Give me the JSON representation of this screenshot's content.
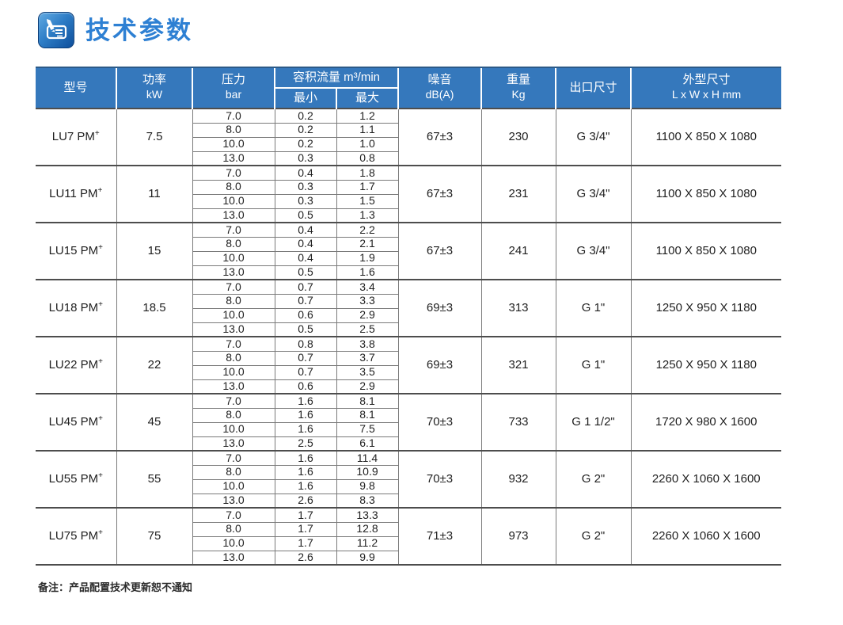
{
  "page": {
    "title": "技术参数",
    "note": "备注：产品配置技术更新恕不通知"
  },
  "colors": {
    "header_bg": "#3578bc",
    "header_top_edge": "#2c5a88",
    "title_text": "#2e80d3",
    "border_inner": "#7a7a7a",
    "border_block": "#4d4d4d"
  },
  "table": {
    "header": {
      "model": "型号",
      "power_l1": "功率",
      "power_l2": "kW",
      "pressure_l1": "压力",
      "pressure_l2": "bar",
      "flow": "容积流量 m³/min",
      "flow_min": "最小",
      "flow_max": "最大",
      "noise_l1": "噪音",
      "noise_l2": "dB(A)",
      "weight_l1": "重量",
      "weight_l2": "Kg",
      "outlet": "出口尺寸",
      "dims_l1": "外型尺寸",
      "dims_l2": "L x W x H mm"
    },
    "models": [
      {
        "name": "LU7 PM",
        "sup": "+",
        "power": "7.5",
        "rows": [
          [
            "7.0",
            "0.2",
            "1.2"
          ],
          [
            "8.0",
            "0.2",
            "1.1"
          ],
          [
            "10.0",
            "0.2",
            "1.0"
          ],
          [
            "13.0",
            "0.3",
            "0.8"
          ]
        ],
        "noise": "67±3",
        "weight": "230",
        "outlet": "G 3/4\"",
        "dims": "1100 X 850 X 1080"
      },
      {
        "name": "LU11 PM",
        "sup": "+",
        "power": "11",
        "rows": [
          [
            "7.0",
            "0.4",
            "1.8"
          ],
          [
            "8.0",
            "0.3",
            "1.7"
          ],
          [
            "10.0",
            "0.3",
            "1.5"
          ],
          [
            "13.0",
            "0.5",
            "1.3"
          ]
        ],
        "noise": "67±3",
        "weight": "231",
        "outlet": "G 3/4\"",
        "dims": "1100 X 850 X 1080"
      },
      {
        "name": "LU15 PM",
        "sup": "+",
        "power": "15",
        "rows": [
          [
            "7.0",
            "0.4",
            "2.2"
          ],
          [
            "8.0",
            "0.4",
            "2.1"
          ],
          [
            "10.0",
            "0.4",
            "1.9"
          ],
          [
            "13.0",
            "0.5",
            "1.6"
          ]
        ],
        "noise": "67±3",
        "weight": "241",
        "outlet": "G 3/4\"",
        "dims": "1100 X 850 X 1080"
      },
      {
        "name": "LU18 PM",
        "sup": "+",
        "power": "18.5",
        "rows": [
          [
            "7.0",
            "0.7",
            "3.4"
          ],
          [
            "8.0",
            "0.7",
            "3.3"
          ],
          [
            "10.0",
            "0.6",
            "2.9"
          ],
          [
            "13.0",
            "0.5",
            "2.5"
          ]
        ],
        "noise": "69±3",
        "weight": "313",
        "outlet": "G 1\"",
        "dims": "1250 X 950 X 1180"
      },
      {
        "name": "LU22 PM",
        "sup": "+",
        "power": "22",
        "rows": [
          [
            "7.0",
            "0.8",
            "3.8"
          ],
          [
            "8.0",
            "0.7",
            "3.7"
          ],
          [
            "10.0",
            "0.7",
            "3.5"
          ],
          [
            "13.0",
            "0.6",
            "2.9"
          ]
        ],
        "noise": "69±3",
        "weight": "321",
        "outlet": "G 1\"",
        "dims": "1250 X 950 X 1180"
      },
      {
        "name": "LU45 PM",
        "sup": "+",
        "power": "45",
        "rows": [
          [
            "7.0",
            "1.6",
            "8.1"
          ],
          [
            "8.0",
            "1.6",
            "8.1"
          ],
          [
            "10.0",
            "1.6",
            "7.5"
          ],
          [
            "13.0",
            "2.5",
            "6.1"
          ]
        ],
        "noise": "70±3",
        "weight": "733",
        "outlet": "G 1 1/2\"",
        "dims": "1720 X 980 X 1600"
      },
      {
        "name": "LU55 PM",
        "sup": "+",
        "power": "55",
        "rows": [
          [
            "7.0",
            "1.6",
            "11.4"
          ],
          [
            "8.0",
            "1.6",
            "10.9"
          ],
          [
            "10.0",
            "1.6",
            "9.8"
          ],
          [
            "13.0",
            "2.6",
            "8.3"
          ]
        ],
        "noise": "70±3",
        "weight": "932",
        "outlet": "G 2\"",
        "dims": "2260 X 1060 X 1600"
      },
      {
        "name": "LU75 PM",
        "sup": "+",
        "power": "75",
        "rows": [
          [
            "7.0",
            "1.7",
            "13.3"
          ],
          [
            "8.0",
            "1.7",
            "12.8"
          ],
          [
            "10.0",
            "1.7",
            "11.2"
          ],
          [
            "13.0",
            "2.6",
            "9.9"
          ]
        ],
        "noise": "71±3",
        "weight": "973",
        "outlet": "G 2\"",
        "dims": "2260 X 1060 X 1600"
      }
    ]
  }
}
